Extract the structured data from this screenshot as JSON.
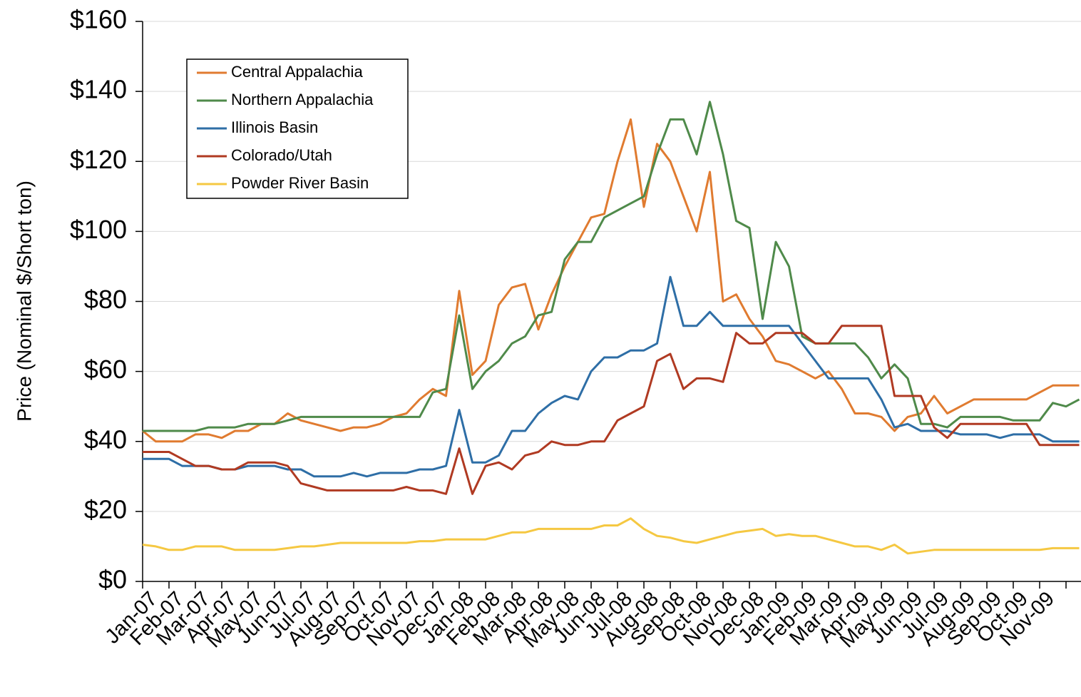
{
  "chart_data": {
    "type": "line",
    "y_label": "Price (Nominal $/Short ton)",
    "categories": [
      "Jan-07",
      null,
      "Feb-07",
      null,
      "Mar-07",
      null,
      "Apr-07",
      null,
      "May-07",
      null,
      "Jun-07",
      null,
      "Jul-07",
      null,
      "Aug-07",
      null,
      "Sep-07",
      null,
      "Oct-07",
      null,
      "Nov-07",
      null,
      "Dec-07",
      null,
      "Jan-08",
      null,
      "Feb-08",
      null,
      "Mar-08",
      null,
      "Apr-08",
      null,
      "May-08",
      null,
      "Jun-08",
      null,
      "Jul-08",
      null,
      "Aug-08",
      null,
      "Sep-08",
      null,
      "Oct-08",
      null,
      "Nov-08",
      null,
      "Dec-08",
      null,
      "Jan-09",
      null,
      "Feb-09",
      null,
      "Mar-09",
      null,
      "Apr-09",
      null,
      "May-09",
      null,
      "Jun-09",
      null,
      "Jul-09",
      null,
      "Aug-09",
      null,
      "Sep-09",
      null,
      "Oct-09",
      null,
      "Nov-09",
      null,
      null,
      null
    ],
    "series": [
      {
        "name": "Central Appalachia",
        "color": "#e07b30",
        "values": [
          43,
          40,
          40,
          40,
          42,
          42,
          41,
          43,
          43,
          45,
          45,
          48,
          46,
          45,
          44,
          43,
          44,
          44,
          45,
          47,
          48,
          52,
          55,
          53,
          83,
          59,
          63,
          79,
          84,
          85,
          72,
          82,
          90,
          97,
          104,
          105,
          120,
          132,
          107,
          125,
          120,
          110,
          100,
          117,
          80,
          82,
          75,
          70,
          63,
          62,
          60,
          58,
          60,
          55,
          48,
          48,
          47,
          43,
          47,
          48,
          53,
          48,
          50,
          52,
          52,
          52,
          52,
          52,
          54,
          56,
          56,
          56
        ]
      },
      {
        "name": "Northern Appalachia",
        "color": "#4f8a4a",
        "values": [
          43,
          43,
          43,
          43,
          43,
          44,
          44,
          44,
          45,
          45,
          45,
          46,
          47,
          47,
          47,
          47,
          47,
          47,
          47,
          47,
          47,
          47,
          54,
          55,
          76,
          55,
          60,
          63,
          68,
          70,
          76,
          77,
          92,
          97,
          97,
          104,
          106,
          108,
          110,
          122,
          132,
          132,
          122,
          137,
          122,
          103,
          101,
          75,
          97,
          90,
          70,
          68,
          68,
          68,
          68,
          64,
          58,
          62,
          58,
          45,
          45,
          44,
          47,
          47,
          47,
          47,
          46,
          46,
          46,
          51,
          50,
          52
        ]
      },
      {
        "name": "Illinois Basin",
        "color": "#2e6ea6",
        "values": [
          35,
          35,
          35,
          33,
          33,
          33,
          32,
          32,
          33,
          33,
          33,
          32,
          32,
          30,
          30,
          30,
          31,
          30,
          31,
          31,
          31,
          32,
          32,
          33,
          49,
          34,
          34,
          36,
          43,
          43,
          48,
          51,
          53,
          52,
          60,
          64,
          64,
          66,
          66,
          68,
          87,
          73,
          73,
          77,
          73,
          73,
          73,
          73,
          73,
          73,
          68,
          63,
          58,
          58,
          58,
          58,
          52,
          44,
          45,
          43,
          43,
          43,
          42,
          42,
          42,
          41,
          42,
          42,
          42,
          40,
          40,
          40
        ]
      },
      {
        "name": "Colorado/Utah",
        "color": "#b03a22",
        "values": [
          37,
          37,
          37,
          35,
          33,
          33,
          32,
          32,
          34,
          34,
          34,
          33,
          28,
          27,
          26,
          26,
          26,
          26,
          26,
          26,
          27,
          26,
          26,
          25,
          38,
          25,
          33,
          34,
          32,
          36,
          37,
          40,
          39,
          39,
          40,
          40,
          46,
          48,
          50,
          63,
          65,
          55,
          58,
          58,
          57,
          71,
          68,
          68,
          71,
          71,
          71,
          68,
          68,
          73,
          73,
          73,
          73,
          53,
          53,
          53,
          44,
          41,
          45,
          45,
          45,
          45,
          45,
          45,
          39,
          39,
          39,
          39
        ]
      },
      {
        "name": "Powder River Basin",
        "color": "#f5c842",
        "values": [
          10.5,
          10,
          9,
          9,
          10,
          10,
          10,
          9,
          9,
          9,
          9,
          9.5,
          10,
          10,
          10.5,
          11,
          11,
          11,
          11,
          11,
          11,
          11.5,
          11.5,
          12,
          12,
          12,
          12,
          13,
          14,
          14,
          15,
          15,
          15,
          15,
          15,
          16,
          16,
          18,
          15,
          13,
          12.5,
          11.5,
          11,
          12,
          13,
          14,
          14.5,
          15,
          13,
          13.5,
          13,
          13,
          12,
          11,
          10,
          10,
          9,
          10.5,
          8,
          8.5,
          9,
          9,
          9,
          9,
          9,
          9,
          9,
          9,
          9,
          9.5,
          9.5,
          9.5
        ]
      }
    ],
    "ylim": [
      0,
      160
    ],
    "yticks": [
      {
        "value": 0,
        "label": "$0"
      },
      {
        "value": 20,
        "label": "$20"
      },
      {
        "value": 40,
        "label": "$40"
      },
      {
        "value": 60,
        "label": "$60"
      },
      {
        "value": 80,
        "label": "$80"
      },
      {
        "value": 100,
        "label": "$100"
      },
      {
        "value": 120,
        "label": "$120"
      },
      {
        "value": 140,
        "label": "$140"
      },
      {
        "value": 160,
        "label": "$160"
      }
    ],
    "grid": true,
    "legend": "upper left"
  }
}
